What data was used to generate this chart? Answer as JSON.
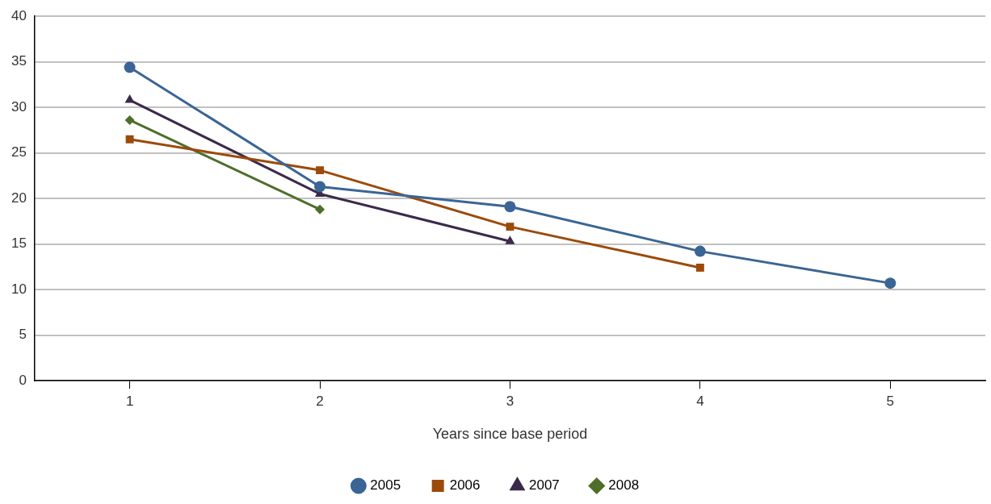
{
  "chart_data": {
    "type": "line",
    "xlabel": "Years since base period",
    "categories": [
      "1",
      "2",
      "3",
      "4",
      "5"
    ],
    "series": [
      {
        "name": "2005",
        "color": "#3a6595",
        "marker": "circle",
        "values": [
          34.4,
          21.3,
          19.1,
          14.2,
          10.7
        ]
      },
      {
        "name": "2006",
        "color": "#9c4a0a",
        "marker": "square",
        "values": [
          26.5,
          23.1,
          16.9,
          12.4,
          null
        ]
      },
      {
        "name": "2007",
        "color": "#3b2a4a",
        "marker": "triangle",
        "values": [
          30.8,
          20.5,
          15.3,
          null,
          null
        ]
      },
      {
        "name": "2008",
        "color": "#4e6e2a",
        "marker": "diamond",
        "values": [
          28.6,
          18.8,
          null,
          null,
          null
        ]
      }
    ],
    "ylim": [
      0,
      40
    ],
    "yticks": [
      0,
      5,
      10,
      15,
      20,
      25,
      30,
      35,
      40
    ],
    "grid": "y",
    "legend": "bottom",
    "line_style": "solid"
  }
}
